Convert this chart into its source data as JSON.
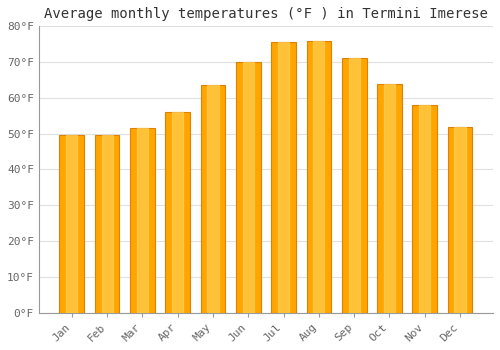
{
  "title": "Average monthly temperatures (°F ) in Termini Imerese",
  "months": [
    "Jan",
    "Feb",
    "Mar",
    "Apr",
    "May",
    "Jun",
    "Jul",
    "Aug",
    "Sep",
    "Oct",
    "Nov",
    "Dec"
  ],
  "values": [
    49.5,
    49.5,
    51.5,
    56.0,
    63.5,
    70.0,
    75.5,
    76.0,
    71.0,
    64.0,
    58.0,
    52.0
  ],
  "bar_color": "#FFA500",
  "bar_edge_color": "#E08000",
  "bar_highlight": "#FFD966",
  "background_color": "#FFFFFF",
  "grid_color": "#E0E0E0",
  "ylim": [
    0,
    80
  ],
  "yticks": [
    0,
    10,
    20,
    30,
    40,
    50,
    60,
    70,
    80
  ],
  "ytick_labels": [
    "0°F",
    "10°F",
    "20°F",
    "30°F",
    "40°F",
    "50°F",
    "60°F",
    "70°F",
    "80°F"
  ],
  "title_fontsize": 10,
  "tick_fontsize": 8,
  "font_family": "monospace"
}
